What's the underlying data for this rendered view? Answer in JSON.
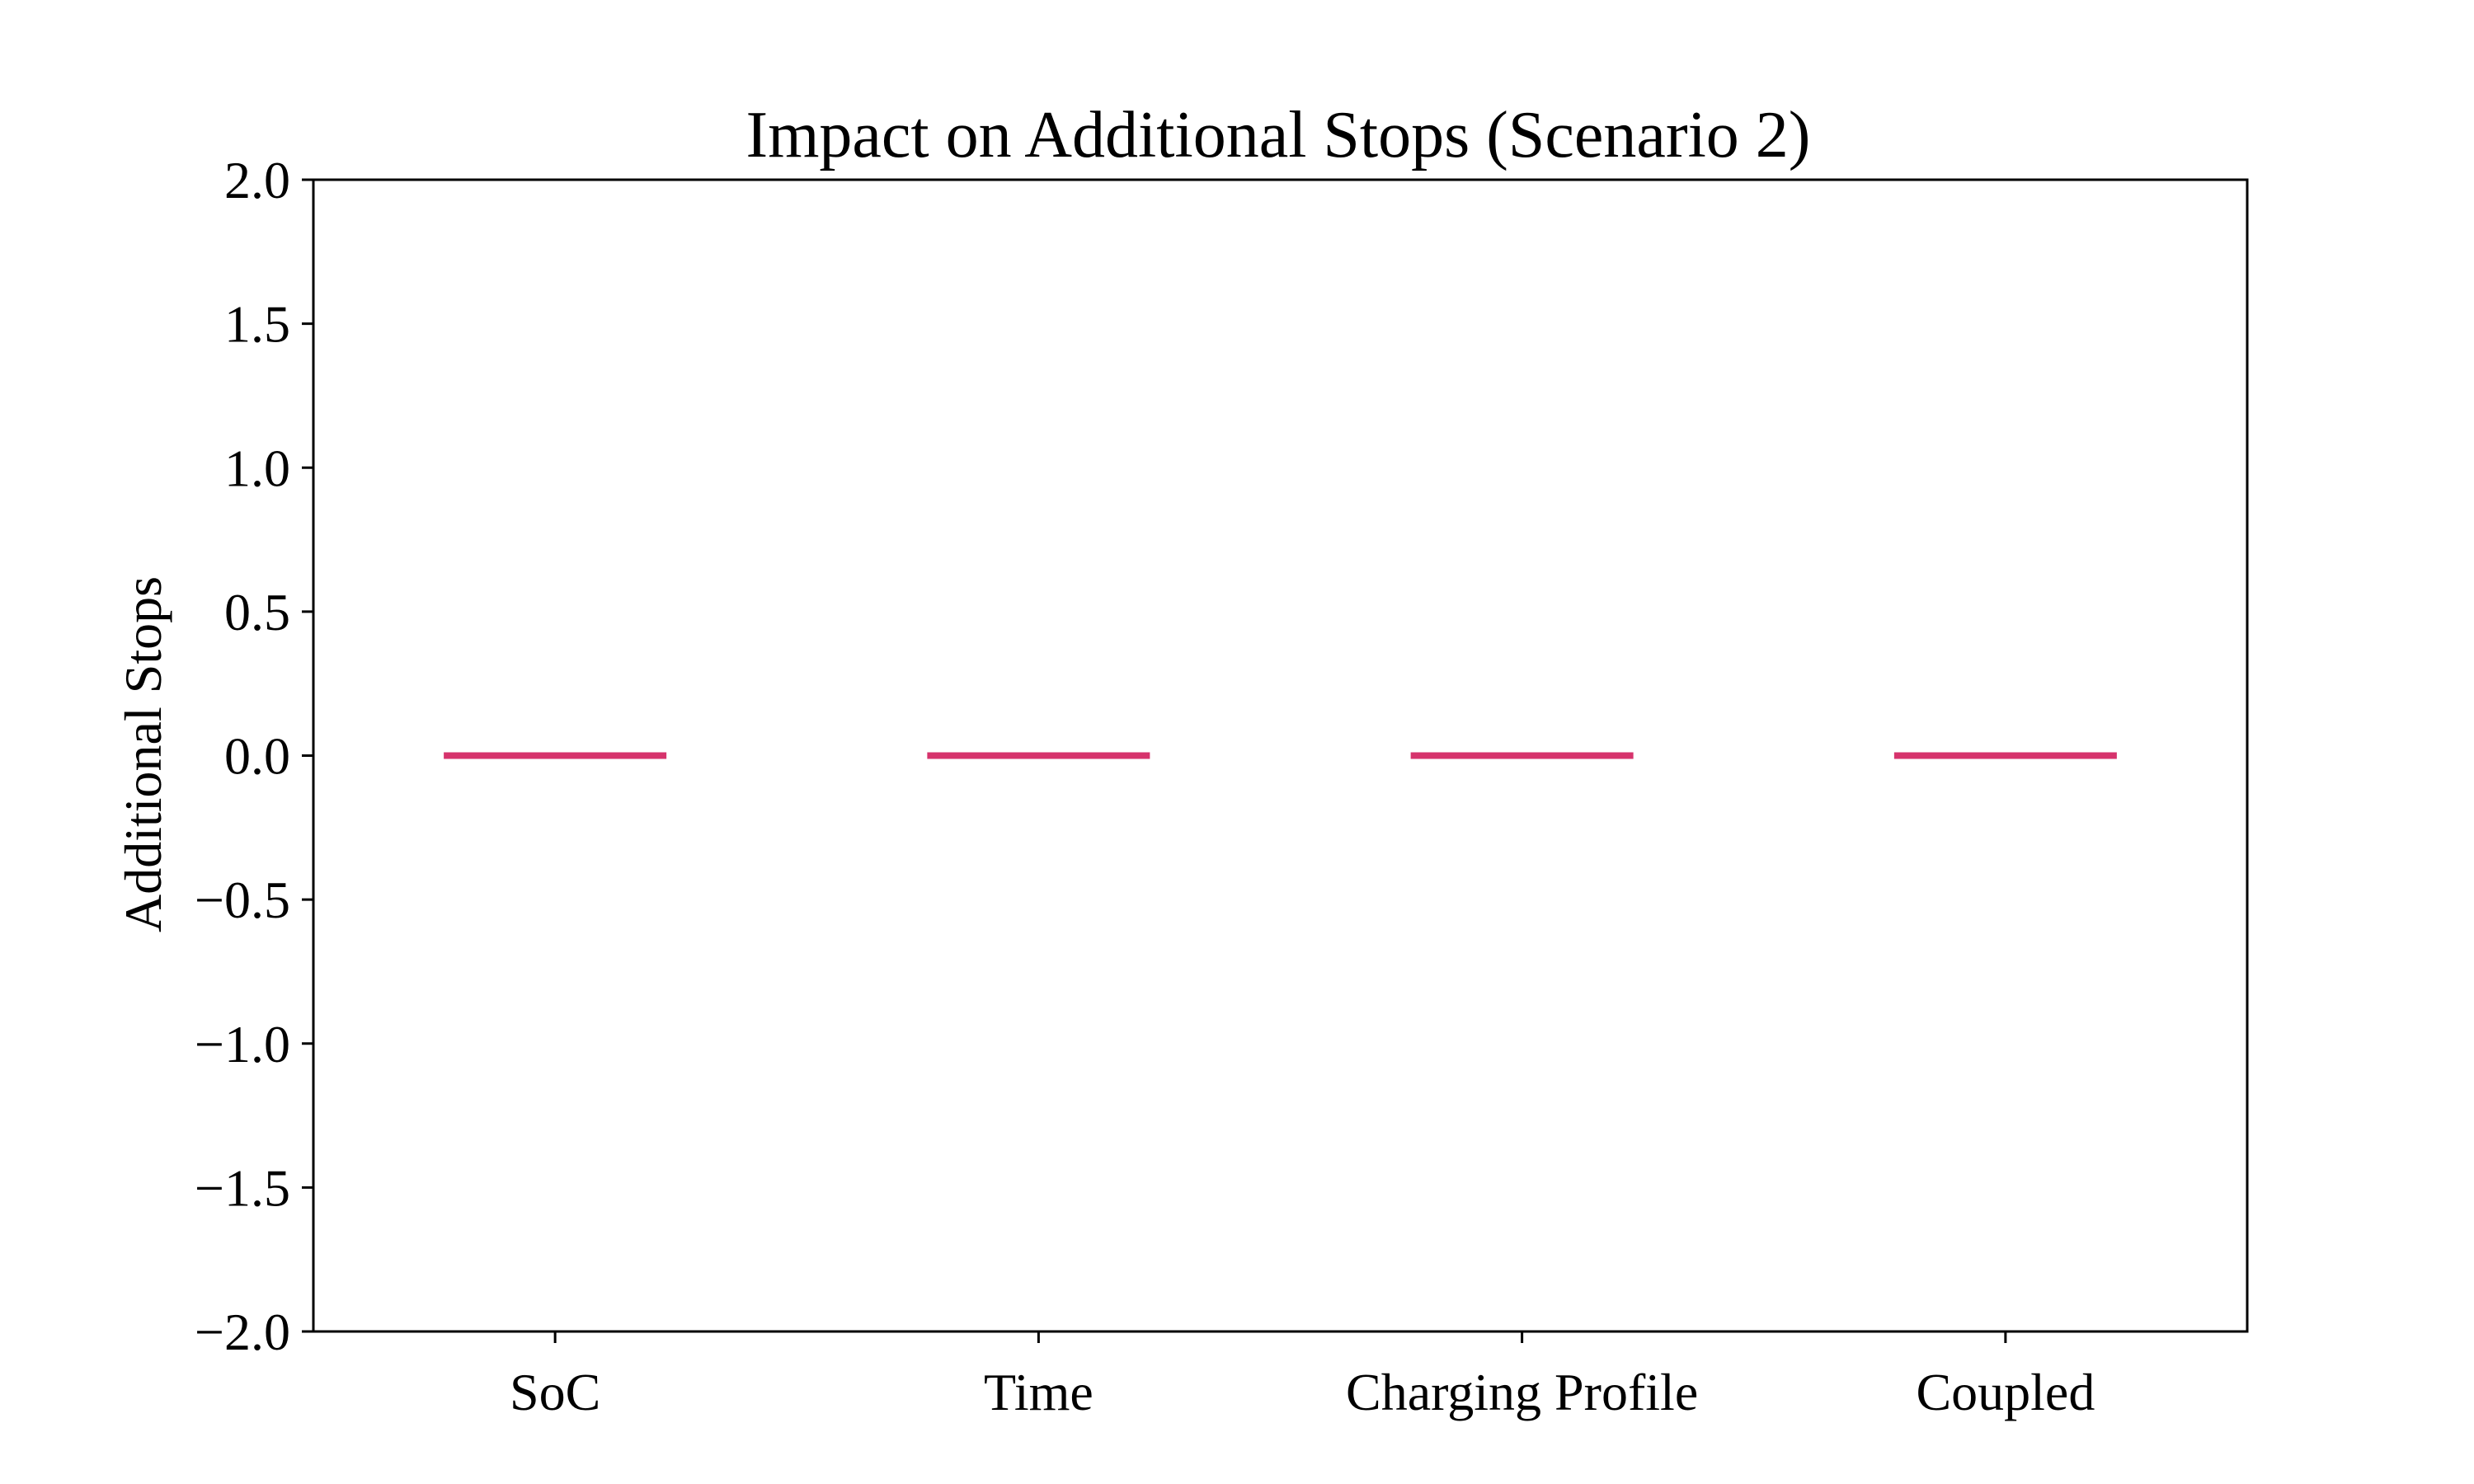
{
  "chart_data": {
    "type": "box",
    "title": "Impact on Additional Stops (Scenario 2)",
    "xlabel": "",
    "ylabel": "Additional Stops",
    "categories": [
      "SoC",
      "Time",
      "Charging Profile",
      "Coupled"
    ],
    "medians": [
      0.0,
      0.0,
      0.0,
      0.0
    ],
    "ylim": [
      -2.0,
      2.0
    ],
    "yticks": [
      -2.0,
      -1.5,
      -1.0,
      -0.5,
      0.0,
      0.5,
      1.0,
      1.5,
      2.0
    ],
    "ytick_labels": [
      "−2.0",
      "−1.5",
      "−1.0",
      "−0.5",
      "0.0",
      "0.5",
      "1.0",
      "1.5",
      "2.0"
    ],
    "median_color": "#d6336c",
    "grid": false,
    "legend": "none"
  }
}
